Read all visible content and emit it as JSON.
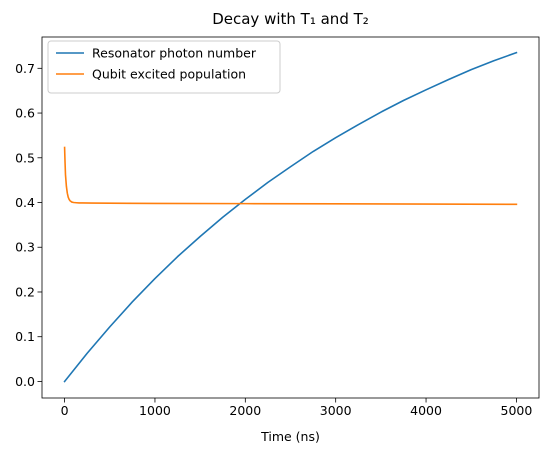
{
  "chart_data": {
    "type": "line",
    "title": "Decay with T₁ and T₂",
    "xlabel": "Time (ns)",
    "ylabel": "",
    "xlim": [
      -250,
      5250
    ],
    "ylim": [
      -0.037,
      0.77
    ],
    "xticks": [
      0,
      1000,
      2000,
      3000,
      4000,
      5000
    ],
    "yticks": [
      0.0,
      0.1,
      0.2,
      0.3,
      0.4,
      0.5,
      0.6,
      0.7
    ],
    "xtick_labels": [
      "0",
      "1000",
      "2000",
      "3000",
      "4000",
      "5000"
    ],
    "ytick_labels": [
      "0.0",
      "0.1",
      "0.2",
      "0.3",
      "0.4",
      "0.5",
      "0.6",
      "0.7"
    ],
    "grid": false,
    "legend_position": "top-left",
    "series": [
      {
        "name": "Resonator photon number",
        "color": "#1f77b4",
        "x": [
          0,
          250,
          500,
          750,
          1000,
          1250,
          1500,
          1750,
          2000,
          2250,
          2500,
          2750,
          3000,
          3250,
          3500,
          3750,
          4000,
          4250,
          4500,
          4750,
          5000
        ],
        "y": [
          0.0,
          0.063,
          0.122,
          0.178,
          0.23,
          0.279,
          0.324,
          0.367,
          0.407,
          0.445,
          0.48,
          0.514,
          0.545,
          0.574,
          0.602,
          0.628,
          0.652,
          0.675,
          0.697,
          0.717,
          0.735
        ]
      },
      {
        "name": "Qubit excited population",
        "color": "#ff7f0e",
        "x": [
          0,
          5,
          10,
          20,
          30,
          40,
          50,
          60,
          80,
          100,
          130,
          160,
          200,
          300,
          500,
          1000,
          2000,
          3000,
          4000,
          5000
        ],
        "y": [
          0.523,
          0.49,
          0.462,
          0.436,
          0.421,
          0.412,
          0.407,
          0.404,
          0.401,
          0.4,
          0.3995,
          0.399,
          0.399,
          0.3988,
          0.3985,
          0.398,
          0.3975,
          0.397,
          0.3965,
          0.396
        ]
      }
    ]
  }
}
